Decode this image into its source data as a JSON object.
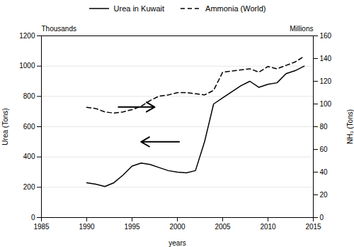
{
  "chart_data": {
    "type": "line",
    "xlabel": "years",
    "ylabel": "Urea (Tons)",
    "y2label": "NH₃ (Tons)",
    "xlim": [
      1985,
      2015
    ],
    "xticks": [
      1985,
      1990,
      1995,
      2000,
      2005,
      2010,
      2015
    ],
    "ylim": [
      0,
      1200
    ],
    "yticks": [
      0,
      200,
      400,
      600,
      800,
      1000,
      1200
    ],
    "y2lim": [
      0,
      160
    ],
    "y2ticks": [
      0,
      20,
      40,
      60,
      80,
      100,
      120,
      140,
      160
    ],
    "x": [
      1990,
      1991,
      1992,
      1993,
      1994,
      1995,
      1996,
      1997,
      1998,
      1999,
      2000,
      2001,
      2002,
      2003,
      2004,
      2005,
      2006,
      2007,
      2008,
      2009,
      2010,
      2011,
      2012,
      2013,
      2014
    ],
    "series": [
      {
        "name": "Urea in Kuwait",
        "color": "#000000",
        "line_style": "solid",
        "values": [
          230,
          220,
          205,
          230,
          280,
          340,
          360,
          350,
          330,
          310,
          300,
          295,
          310,
          500,
          750,
          790,
          830,
          870,
          900,
          860,
          880,
          890,
          950,
          970,
          1000
        ]
      },
      {
        "name": "Ammonia (World)",
        "color": "#000000",
        "line_style": "dashed",
        "axis": "y2",
        "values": [
          97,
          96,
          93,
          92,
          93,
          95,
          98,
          103,
          107,
          108,
          110,
          110,
          109,
          108,
          112,
          128,
          129,
          130,
          131,
          128,
          133,
          131,
          134,
          137,
          142
        ]
      }
    ],
    "grid": true,
    "legend": "top",
    "annotations": [
      {
        "text": "Thousands",
        "axis": "y"
      },
      {
        "text": "Millions",
        "axis": "y2"
      },
      {
        "type": "arrow",
        "x1": 1993.5,
        "x2": 1997.5,
        "y": 730
      },
      {
        "type": "arrow",
        "x1": 2000.2,
        "x2": 1996.0,
        "y": 500
      }
    ]
  }
}
